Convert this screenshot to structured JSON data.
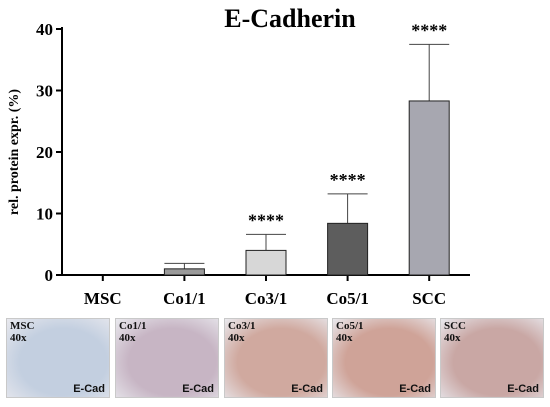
{
  "chart_data": {
    "type": "bar",
    "title": "E-Cadherin",
    "ylabel": "rel. protein expr. (%)",
    "xlabel": "",
    "ylim": [
      0,
      40
    ],
    "yticks": [
      0,
      10,
      20,
      30,
      40
    ],
    "categories": [
      "MSC",
      "Co1/1",
      "Co3/1",
      "Co5/1",
      "SCC"
    ],
    "values": [
      0,
      1.0,
      4.0,
      8.4,
      28.3
    ],
    "errors": [
      0,
      0.9,
      2.6,
      4.8,
      9.2
    ],
    "significance": [
      "",
      "",
      "****",
      "****",
      "****"
    ],
    "colors": [
      "#ffffff",
      "#9a9a9a",
      "#d7d7d7",
      "#5d5d5d",
      "#a7a7b0"
    ],
    "grid": false
  },
  "panels": [
    {
      "name": "MSC",
      "mag": "40x",
      "stain": "E-Cad",
      "tone": "#c3cfe0"
    },
    {
      "name": "Co1/1",
      "mag": "40x",
      "stain": "E-Cad",
      "tone": "#c7b5c4"
    },
    {
      "name": "Co3/1",
      "mag": "40x",
      "stain": "E-Cad",
      "tone": "#d0a99f"
    },
    {
      "name": "Co5/1",
      "mag": "40x",
      "stain": "E-Cad",
      "tone": "#cfa398"
    },
    {
      "name": "SCC",
      "mag": "40x",
      "stain": "E-Cad",
      "tone": "#c9a7a4"
    }
  ]
}
